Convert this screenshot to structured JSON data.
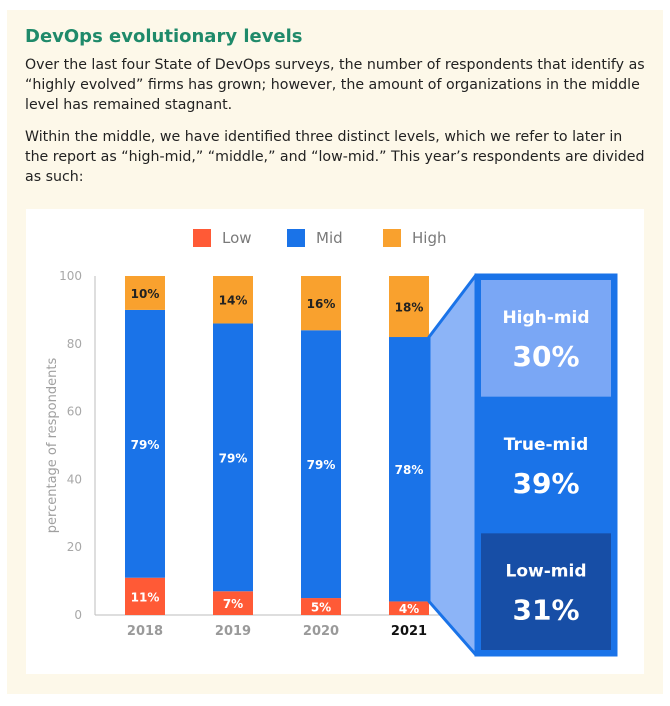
{
  "header": {
    "title": "DevOps evolutionary levels",
    "paragraph1": "Over the last four State of DevOps surveys, the number of respondents that identify as “highly evolved” firms has grown; however, the amount of organizations in the middle level has remained stagnant.",
    "paragraph2": "Within the middle, we have identified three distinct levels, which we refer to later in the report as “high-mid,” “middle,” and “low-mid.” This year’s respondents are divided as such:"
  },
  "colors": {
    "low": "#ff5a36",
    "mid": "#1a73e8",
    "high": "#f9a12e",
    "high_mid": "#7aa7f5",
    "true_mid": "#1a73e8",
    "low_mid": "#174ea6",
    "title": "#1f8a6a"
  },
  "chart_data": {
    "type": "bar",
    "stacked": true,
    "categories": [
      "2018",
      "2019",
      "2020",
      "2021"
    ],
    "series": [
      {
        "name": "Low",
        "values": [
          11,
          7,
          5,
          4
        ],
        "labels": [
          "11%",
          "7%",
          "5%",
          "4%"
        ]
      },
      {
        "name": "Mid",
        "values": [
          79,
          79,
          79,
          78
        ],
        "labels": [
          "79%",
          "79%",
          "79%",
          "78%"
        ]
      },
      {
        "name": "High",
        "values": [
          10,
          14,
          16,
          18
        ],
        "labels": [
          "10%",
          "14%",
          "16%",
          "18%"
        ]
      }
    ],
    "ylabel": "percentage of respondents",
    "ylim": [
      0,
      100
    ],
    "yticks": [
      "0",
      "20",
      "40",
      "60",
      "80",
      "100"
    ],
    "legend": "top",
    "highlighted_category": "2021",
    "breakdown": [
      {
        "name": "High-mid",
        "value": "30%"
      },
      {
        "name": "True-mid",
        "value": "39%"
      },
      {
        "name": "Low-mid",
        "value": "31%"
      }
    ]
  }
}
